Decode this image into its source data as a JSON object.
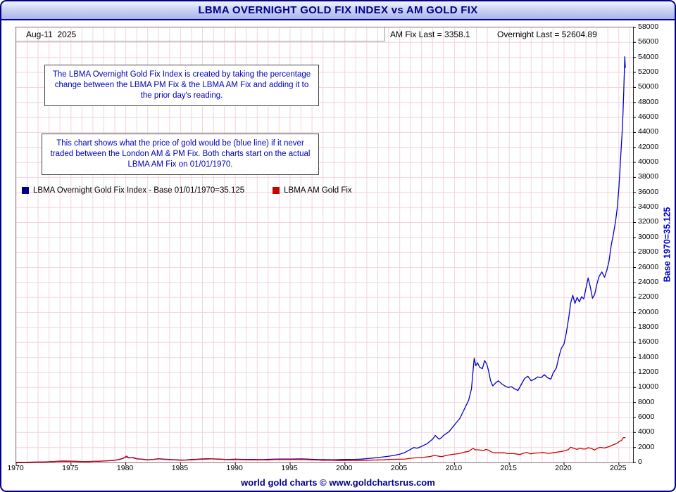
{
  "header": {
    "title": "LBMA OVERNIGHT GOLD FIX INDEX vs AM GOLD FIX",
    "date": "Aug-11  2025",
    "am_fix_last": "AM Fix Last = 3358.1",
    "overnight_last": "Overnight Last = 52604.89"
  },
  "notes": [
    "The LBMA Overnight Gold Fix Index is created by taking the percentage change between the LBMA PM Fix & the LBMA AM Fix and adding it to the prior day's reading.",
    "This chart shows what the price of gold would be (blue line) if it never traded between the London AM & PM Fix. Both charts start on the actual LBMA AM Fix on 01/01/1970."
  ],
  "legend": [
    {
      "label": "LBMA Overnight Gold Fix Index - Base 01/01/1970=35.125",
      "color": "#00008b"
    },
    {
      "label": "LBMA AM Gold Fix",
      "color": "#cc0000"
    }
  ],
  "footer": {
    "caption": "world gold charts © www.goldchartsrus.com"
  },
  "colors": {
    "accent_navy": "#00008b",
    "blue_line": "#0000cd",
    "red_line": "#cc0000",
    "grid": "#f3d3dd"
  },
  "chart_data": {
    "type": "line",
    "title": "LBMA OVERNIGHT GOLD FIX INDEX vs AM GOLD FIX",
    "xlabel": "",
    "ylabel_right": "Base 1970=35.125",
    "xlim": [
      1970,
      2026.3
    ],
    "ylim": [
      0,
      58000
    ],
    "ytick_step": 2000,
    "xticks": [
      1970,
      1975,
      1980,
      1985,
      1990,
      1995,
      2000,
      2005,
      2010,
      2015,
      2020,
      2025
    ],
    "grid": true,
    "grid_color": "#f3d3dd",
    "legend_position": "top-left",
    "series": [
      {
        "name": "LBMA Overnight Gold Fix Index - Base 01/01/1970=35.125",
        "color": "#0000cd",
        "last_value": 52604.89,
        "points": [
          [
            1970,
            35
          ],
          [
            1970.5,
            37
          ],
          [
            1971,
            42
          ],
          [
            1971.5,
            46
          ],
          [
            1972,
            58
          ],
          [
            1972.5,
            68
          ],
          [
            1973,
            105
          ],
          [
            1973.5,
            130
          ],
          [
            1974,
            185
          ],
          [
            1974.5,
            195
          ],
          [
            1975,
            165
          ],
          [
            1975.5,
            150
          ],
          [
            1976,
            120
          ],
          [
            1976.5,
            115
          ],
          [
            1977,
            150
          ],
          [
            1977.5,
            160
          ],
          [
            1978,
            200
          ],
          [
            1978.5,
            230
          ],
          [
            1979,
            300
          ],
          [
            1979.5,
            420
          ],
          [
            1980.05,
            760
          ],
          [
            1980.3,
            600
          ],
          [
            1980.6,
            650
          ],
          [
            1981,
            480
          ],
          [
            1981.5,
            440
          ],
          [
            1982,
            360
          ],
          [
            1982.6,
            420
          ],
          [
            1983,
            500
          ],
          [
            1983.5,
            440
          ],
          [
            1984,
            400
          ],
          [
            1984.5,
            370
          ],
          [
            1985,
            330
          ],
          [
            1985.5,
            340
          ],
          [
            1986,
            400
          ],
          [
            1986.5,
            430
          ],
          [
            1987,
            480
          ],
          [
            1987.5,
            510
          ],
          [
            1988,
            480
          ],
          [
            1988.5,
            460
          ],
          [
            1989,
            420
          ],
          [
            1989.5,
            410
          ],
          [
            1990,
            440
          ],
          [
            1990.5,
            420
          ],
          [
            1991,
            410
          ],
          [
            1991.5,
            400
          ],
          [
            1992,
            390
          ],
          [
            1992.5,
            380
          ],
          [
            1993,
            420
          ],
          [
            1993.5,
            440
          ],
          [
            1994,
            450
          ],
          [
            1994.5,
            455
          ],
          [
            1995,
            460
          ],
          [
            1995.5,
            470
          ],
          [
            1996,
            480
          ],
          [
            1996.5,
            460
          ],
          [
            1997,
            420
          ],
          [
            1997.5,
            390
          ],
          [
            1998,
            380
          ],
          [
            1998.5,
            375
          ],
          [
            1999,
            365
          ],
          [
            1999.5,
            380
          ],
          [
            2000,
            400
          ],
          [
            2000.5,
            410
          ],
          [
            2001,
            420
          ],
          [
            2001.5,
            450
          ],
          [
            2002,
            520
          ],
          [
            2002.5,
            580
          ],
          [
            2003,
            660
          ],
          [
            2003.5,
            740
          ],
          [
            2004,
            830
          ],
          [
            2004.5,
            950
          ],
          [
            2005,
            1100
          ],
          [
            2005.5,
            1350
          ],
          [
            2006,
            1750
          ],
          [
            2006.3,
            2000
          ],
          [
            2006.6,
            1900
          ],
          [
            2007,
            2150
          ],
          [
            2007.5,
            2500
          ],
          [
            2008,
            3100
          ],
          [
            2008.25,
            3600
          ],
          [
            2008.6,
            3100
          ],
          [
            2008.8,
            3300
          ],
          [
            2009,
            3600
          ],
          [
            2009.5,
            4100
          ],
          [
            2010,
            5000
          ],
          [
            2010.5,
            5900
          ],
          [
            2011,
            7400
          ],
          [
            2011.3,
            8300
          ],
          [
            2011.55,
            9800
          ],
          [
            2011.7,
            12200
          ],
          [
            2011.8,
            13900
          ],
          [
            2011.95,
            12900
          ],
          [
            2012.1,
            13300
          ],
          [
            2012.3,
            12700
          ],
          [
            2012.55,
            12500
          ],
          [
            2012.75,
            13600
          ],
          [
            2012.95,
            13100
          ],
          [
            2013.1,
            12300
          ],
          [
            2013.3,
            10900
          ],
          [
            2013.5,
            10200
          ],
          [
            2013.75,
            10600
          ],
          [
            2014,
            10900
          ],
          [
            2014.3,
            10500
          ],
          [
            2014.6,
            10200
          ],
          [
            2014.9,
            10000
          ],
          [
            2015.2,
            10100
          ],
          [
            2015.5,
            9800
          ],
          [
            2015.8,
            9600
          ],
          [
            2016.1,
            10400
          ],
          [
            2016.4,
            11200
          ],
          [
            2016.7,
            11500
          ],
          [
            2017,
            10900
          ],
          [
            2017.3,
            11100
          ],
          [
            2017.6,
            11400
          ],
          [
            2017.9,
            11300
          ],
          [
            2018.2,
            11700
          ],
          [
            2018.5,
            11300
          ],
          [
            2018.8,
            11100
          ],
          [
            2019,
            11900
          ],
          [
            2019.3,
            12600
          ],
          [
            2019.55,
            14200
          ],
          [
            2019.75,
            15200
          ],
          [
            2020,
            15800
          ],
          [
            2020.2,
            17200
          ],
          [
            2020.45,
            19500
          ],
          [
            2020.6,
            21200
          ],
          [
            2020.8,
            22300
          ],
          [
            2021,
            21200
          ],
          [
            2021.2,
            22000
          ],
          [
            2021.4,
            21400
          ],
          [
            2021.6,
            22100
          ],
          [
            2021.8,
            21800
          ],
          [
            2022,
            23200
          ],
          [
            2022.2,
            24600
          ],
          [
            2022.4,
            23400
          ],
          [
            2022.6,
            21900
          ],
          [
            2022.8,
            22400
          ],
          [
            2023,
            23800
          ],
          [
            2023.2,
            24800
          ],
          [
            2023.45,
            25400
          ],
          [
            2023.7,
            24700
          ],
          [
            2023.9,
            25600
          ],
          [
            2024.1,
            26800
          ],
          [
            2024.3,
            28900
          ],
          [
            2024.5,
            30400
          ],
          [
            2024.7,
            32100
          ],
          [
            2024.85,
            33800
          ],
          [
            2025,
            36500
          ],
          [
            2025.1,
            38800
          ],
          [
            2025.2,
            41500
          ],
          [
            2025.3,
            43800
          ],
          [
            2025.38,
            46500
          ],
          [
            2025.45,
            49500
          ],
          [
            2025.5,
            52000
          ],
          [
            2025.55,
            54100
          ],
          [
            2025.58,
            53000
          ],
          [
            2025.6,
            52604.89
          ]
        ]
      },
      {
        "name": "LBMA AM Gold Fix",
        "color": "#cc0000",
        "last_value": 3358.1,
        "points": [
          [
            1970,
            35
          ],
          [
            1971,
            40
          ],
          [
            1972,
            52
          ],
          [
            1973,
            90
          ],
          [
            1974,
            170
          ],
          [
            1975,
            155
          ],
          [
            1976,
            112
          ],
          [
            1977,
            140
          ],
          [
            1978,
            195
          ],
          [
            1979,
            290
          ],
          [
            1979.8,
            560
          ],
          [
            1980.05,
            850
          ],
          [
            1980.3,
            620
          ],
          [
            1980.7,
            660
          ],
          [
            1981,
            500
          ],
          [
            1981.5,
            420
          ],
          [
            1982,
            340
          ],
          [
            1982.6,
            420
          ],
          [
            1983,
            480
          ],
          [
            1983.5,
            415
          ],
          [
            1984,
            375
          ],
          [
            1984.5,
            345
          ],
          [
            1985,
            300
          ],
          [
            1985.5,
            320
          ],
          [
            1986,
            360
          ],
          [
            1986.5,
            390
          ],
          [
            1987,
            430
          ],
          [
            1987.9,
            480
          ],
          [
            1988.3,
            440
          ],
          [
            1989,
            390
          ],
          [
            1989.8,
            370
          ],
          [
            1990,
            395
          ],
          [
            1990.6,
            370
          ],
          [
            1991,
            360
          ],
          [
            1992,
            345
          ],
          [
            1993,
            350
          ],
          [
            1993.6,
            380
          ],
          [
            1994,
            382
          ],
          [
            1995,
            384
          ],
          [
            1996.1,
            400
          ],
          [
            1996.8,
            360
          ],
          [
            1997.5,
            325
          ],
          [
            1998,
            295
          ],
          [
            1998.8,
            290
          ],
          [
            1999.6,
            262
          ],
          [
            2000,
            285
          ],
          [
            2000.8,
            270
          ],
          [
            2001.3,
            262
          ],
          [
            2002,
            300
          ],
          [
            2002.8,
            330
          ],
          [
            2003.5,
            360
          ],
          [
            2004,
            405
          ],
          [
            2004.8,
            435
          ],
          [
            2005.5,
            460
          ],
          [
            2006.2,
            600
          ],
          [
            2006.5,
            620
          ],
          [
            2007,
            660
          ],
          [
            2007.8,
            800
          ],
          [
            2008.2,
            950
          ],
          [
            2008.6,
            820
          ],
          [
            2008.85,
            780
          ],
          [
            2009.2,
            930
          ],
          [
            2009.8,
            1080
          ],
          [
            2010.4,
            1180
          ],
          [
            2010.9,
            1380
          ],
          [
            2011.3,
            1480
          ],
          [
            2011.7,
            1880
          ],
          [
            2011.9,
            1700
          ],
          [
            2012.2,
            1680
          ],
          [
            2012.7,
            1600
          ],
          [
            2012.85,
            1740
          ],
          [
            2013.1,
            1650
          ],
          [
            2013.35,
            1420
          ],
          [
            2013.6,
            1290
          ],
          [
            2014,
            1280
          ],
          [
            2014.5,
            1290
          ],
          [
            2014.9,
            1180
          ],
          [
            2015.4,
            1190
          ],
          [
            2015.95,
            1060
          ],
          [
            2016.3,
            1240
          ],
          [
            2016.6,
            1330
          ],
          [
            2016.95,
            1150
          ],
          [
            2017.3,
            1250
          ],
          [
            2017.7,
            1270
          ],
          [
            2018.1,
            1330
          ],
          [
            2018.6,
            1210
          ],
          [
            2019,
            1290
          ],
          [
            2019.5,
            1410
          ],
          [
            2019.8,
            1480
          ],
          [
            2020.1,
            1580
          ],
          [
            2020.4,
            1720
          ],
          [
            2020.6,
            2030
          ],
          [
            2020.9,
            1880
          ],
          [
            2021.2,
            1740
          ],
          [
            2021.45,
            1890
          ],
          [
            2021.75,
            1790
          ],
          [
            2022,
            1810
          ],
          [
            2022.2,
            1980
          ],
          [
            2022.55,
            1840
          ],
          [
            2022.8,
            1650
          ],
          [
            2023,
            1870
          ],
          [
            2023.3,
            2010
          ],
          [
            2023.7,
            1930
          ],
          [
            2023.95,
            2040
          ],
          [
            2024.2,
            2160
          ],
          [
            2024.45,
            2330
          ],
          [
            2024.7,
            2470
          ],
          [
            2024.9,
            2630
          ],
          [
            2025.1,
            2860
          ],
          [
            2025.25,
            2920
          ],
          [
            2025.35,
            3240
          ],
          [
            2025.45,
            3320
          ],
          [
            2025.55,
            3300
          ],
          [
            2025.6,
            3358.1
          ]
        ]
      }
    ]
  }
}
